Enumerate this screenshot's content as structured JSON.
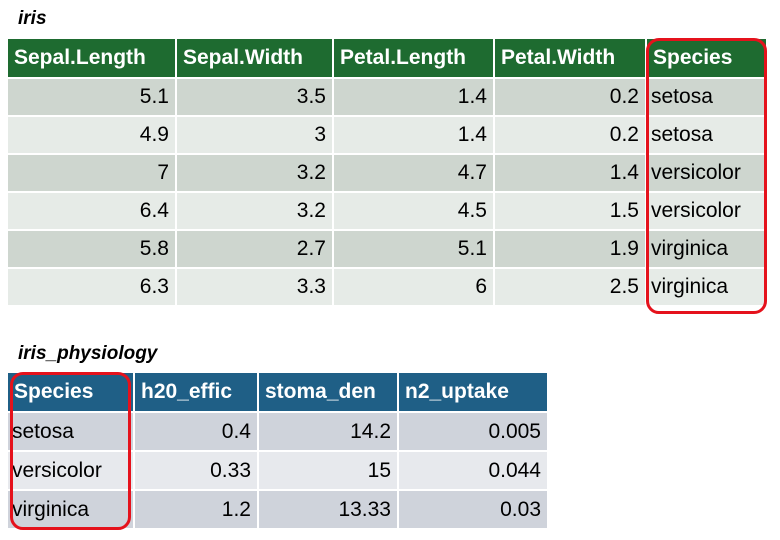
{
  "iris": {
    "title": "iris",
    "columns": [
      "Sepal.Length",
      "Sepal.Width",
      "Petal.Length",
      "Petal.Width",
      "Species"
    ],
    "rows": [
      [
        "5.1",
        "3.5",
        "1.4",
        "0.2",
        "setosa"
      ],
      [
        "4.9",
        "3",
        "1.4",
        "0.2",
        "setosa"
      ],
      [
        "7",
        "3.2",
        "4.7",
        "1.4",
        "versicolor"
      ],
      [
        "6.4",
        "3.2",
        "4.5",
        "1.5",
        "versicolor"
      ],
      [
        "5.8",
        "2.7",
        "5.1",
        "1.9",
        "virginica"
      ],
      [
        "6.3",
        "3.3",
        "6",
        "2.5",
        "virginica"
      ]
    ]
  },
  "iris_physiology": {
    "title": "iris_physiology",
    "columns": [
      "Species",
      "h20_effic",
      "stoma_den",
      "n2_uptake"
    ],
    "rows": [
      [
        "setosa",
        "0.4",
        "14.2",
        "0.005"
      ],
      [
        "versicolor",
        "0.33",
        "15",
        "0.044"
      ],
      [
        "virginica",
        "1.2",
        "13.33",
        "0.03"
      ]
    ]
  },
  "colors": {
    "iris_header": "#1e6b30",
    "physiology_header": "#1f5f86",
    "highlight": "#e5121c"
  }
}
